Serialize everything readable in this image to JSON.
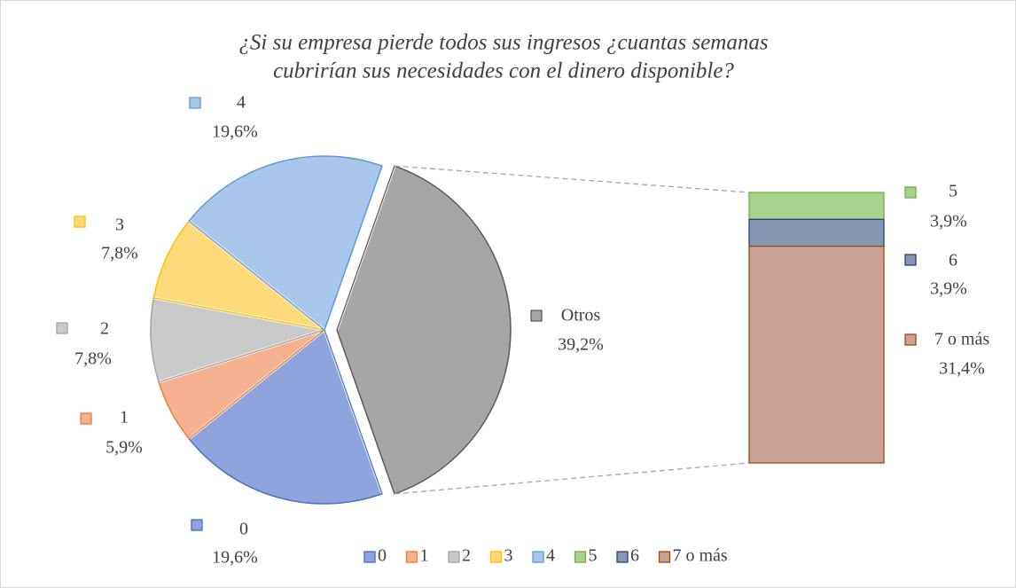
{
  "chart_data": {
    "type": "bar_of_pie",
    "title": [
      "¿Si su empresa pierde todos sus ingresos ¿cuantas semanas",
      "cubrirían sus necesidades con el dinero disponible?"
    ],
    "pie": {
      "categories": [
        "0",
        "1",
        "2",
        "3",
        "4",
        "Otros"
      ],
      "values": [
        19.6,
        5.9,
        7.8,
        7.8,
        19.6,
        39.2
      ],
      "value_labels": [
        "19,6%",
        "5,9%",
        "7,8%",
        "7,8%",
        "19,6%",
        "39,2%"
      ],
      "colors": [
        "#8fa3dc",
        "#f5b08f",
        "#cacaca",
        "#ffd97a",
        "#a8c6ea",
        "#a6a6a6"
      ],
      "border_colors": [
        "#4472c4",
        "#ed7d31",
        "#a5a5a5",
        "#ffc000",
        "#5b9bd5",
        "#595959"
      ]
    },
    "bar": {
      "categories": [
        "5",
        "6",
        "7 o más"
      ],
      "values": [
        3.9,
        3.9,
        31.4
      ],
      "value_labels": [
        "3,9%",
        "3,9%",
        "31,4%"
      ],
      "colors": [
        "#a9d18e",
        "#8496b0",
        "#c9a197"
      ],
      "border_colors": [
        "#70ad47",
        "#264478",
        "#9e480e"
      ]
    },
    "legend": true
  }
}
